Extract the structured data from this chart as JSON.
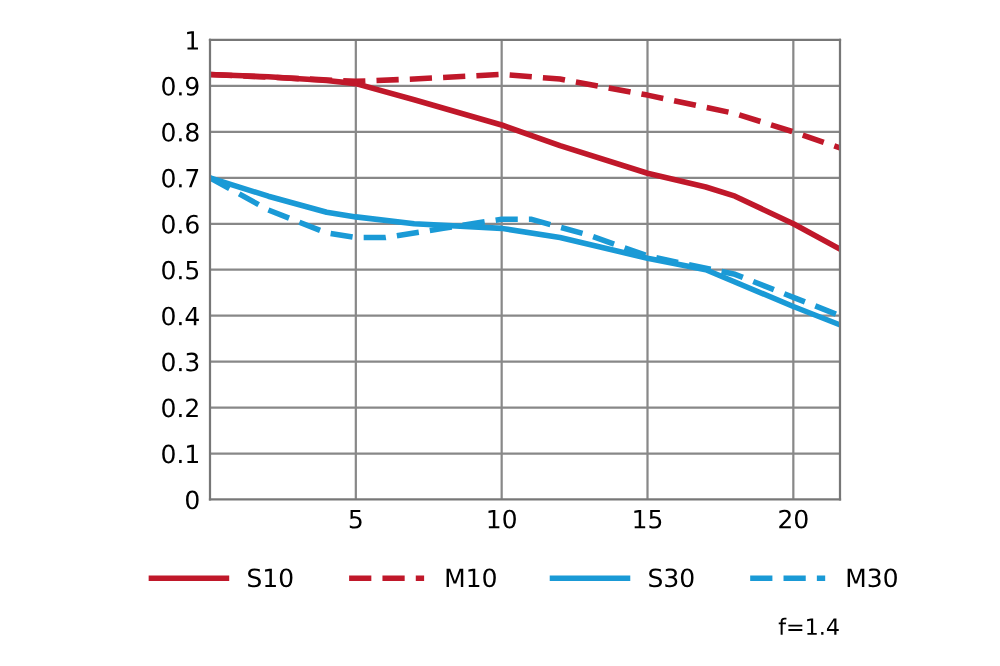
{
  "chart_data": {
    "type": "line",
    "xlim": [
      0,
      21.6
    ],
    "ylim": [
      0,
      1
    ],
    "xticks": [
      5,
      10,
      15,
      20
    ],
    "yticks": [
      0,
      0.1,
      0.2,
      0.3,
      0.4,
      0.5,
      0.6,
      0.7,
      0.8,
      0.9,
      1
    ],
    "grid": true,
    "legend": "bottom",
    "annotations": [
      "f=1.4"
    ],
    "series": [
      {
        "name": "S10",
        "color": "#c0182a",
        "line_style": "solid",
        "x": [
          0,
          2,
          4,
          5,
          7,
          10,
          12,
          15,
          17,
          18,
          20,
          21.6
        ],
        "values": [
          0.925,
          0.92,
          0.912,
          0.905,
          0.87,
          0.815,
          0.77,
          0.71,
          0.68,
          0.66,
          0.6,
          0.545
        ]
      },
      {
        "name": "M10",
        "color": "#c0182a",
        "line_style": "dashed",
        "x": [
          0,
          5,
          7,
          10,
          12,
          15,
          18,
          20,
          21.6
        ],
        "values": [
          0.925,
          0.91,
          0.915,
          0.925,
          0.915,
          0.88,
          0.84,
          0.8,
          0.765
        ]
      },
      {
        "name": "S30",
        "color": "#1a9ad6",
        "line_style": "solid",
        "x": [
          0,
          2,
          4,
          5,
          7,
          10,
          12,
          15,
          17,
          20,
          21.6
        ],
        "values": [
          0.7,
          0.66,
          0.625,
          0.615,
          0.6,
          0.59,
          0.57,
          0.525,
          0.5,
          0.42,
          0.38
        ]
      },
      {
        "name": "M30",
        "color": "#1a9ad6",
        "line_style": "dashed",
        "x": [
          0,
          2,
          4,
          5,
          6,
          8,
          10,
          11,
          13,
          15,
          18,
          20,
          21.6
        ],
        "values": [
          0.7,
          0.63,
          0.58,
          0.57,
          0.57,
          0.59,
          0.61,
          0.61,
          0.575,
          0.53,
          0.49,
          0.44,
          0.4
        ]
      }
    ]
  }
}
